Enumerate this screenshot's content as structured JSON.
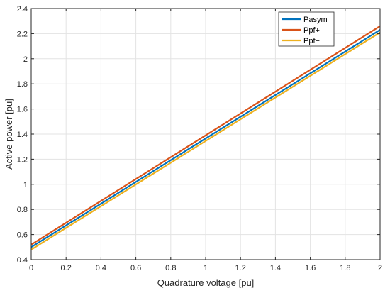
{
  "chart_data": {
    "type": "line",
    "title": "",
    "xlabel": "Quadrature voltage [pu]",
    "ylabel": "Active power [pu]",
    "xlim": [
      0,
      2
    ],
    "ylim": [
      0.4,
      2.4
    ],
    "xticks": [
      "0",
      "0.2",
      "0.4",
      "0.6",
      "0.8",
      "1",
      "1.2",
      "1.4",
      "1.6",
      "1.8",
      "2"
    ],
    "yticks": [
      "0.4",
      "0.6",
      "0.8",
      "1",
      "1.2",
      "1.4",
      "1.6",
      "1.8",
      "2",
      "2.2",
      "2.4"
    ],
    "grid": true,
    "legend_position": "top-right",
    "series": [
      {
        "name": "Pasym",
        "color": "#0072BD",
        "x": [
          0,
          2
        ],
        "y": [
          0.5,
          2.23
        ]
      },
      {
        "name": "Ppf+",
        "color": "#D95319",
        "x": [
          0,
          2
        ],
        "y": [
          0.52,
          2.26
        ]
      },
      {
        "name": "Ppf−",
        "color": "#EDB120",
        "x": [
          0,
          2
        ],
        "y": [
          0.48,
          2.21
        ]
      }
    ]
  }
}
